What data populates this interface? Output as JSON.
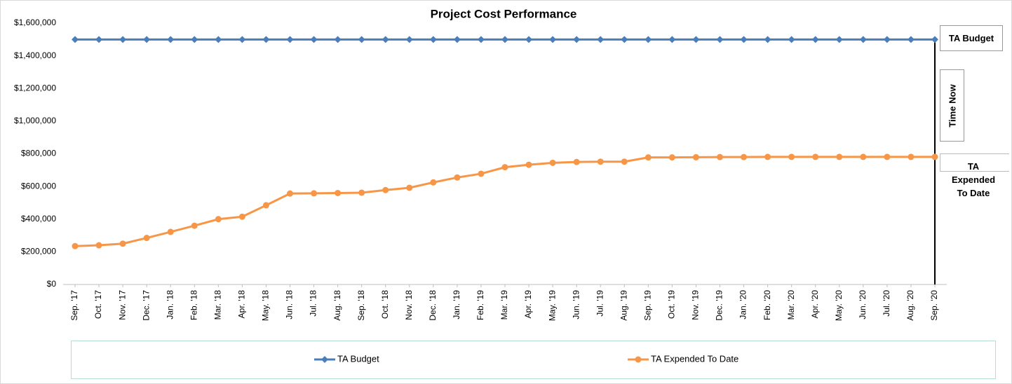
{
  "chart_data": {
    "type": "line",
    "title": "Project Cost Performance",
    "categories": [
      "Sep. '17",
      "Oct. '17",
      "Nov. '17",
      "Dec. '17",
      "Jan. '18",
      "Feb. '18",
      "Mar. '18",
      "Apr. '18",
      "May. '18",
      "Jun. '18",
      "Jul. '18",
      "Aug. '18",
      "Sep. '18",
      "Oct. '18",
      "Nov. '18",
      "Dec. '18",
      "Jan. '19",
      "Feb. '19",
      "Mar. '19",
      "Apr. '19",
      "May. '19",
      "Jun. '19",
      "Jul. '19",
      "Aug. '19",
      "Sep. '19",
      "Oct. '19",
      "Nov. '19",
      "Dec. '19",
      "Jan. '20",
      "Feb. '20",
      "Mar. '20",
      "Apr. '20",
      "May. '20",
      "Jun. '20",
      "Jul. '20",
      "Aug. '20",
      "Sep. '20"
    ],
    "series": [
      {
        "name": "TA Budget",
        "color": "#4a7ebb",
        "marker": "diamond",
        "values": [
          1500000,
          1500000,
          1500000,
          1500000,
          1500000,
          1500000,
          1500000,
          1500000,
          1500000,
          1500000,
          1500000,
          1500000,
          1500000,
          1500000,
          1500000,
          1500000,
          1500000,
          1500000,
          1500000,
          1500000,
          1500000,
          1500000,
          1500000,
          1500000,
          1500000,
          1500000,
          1500000,
          1500000,
          1500000,
          1500000,
          1500000,
          1500000,
          1500000,
          1500000,
          1500000,
          1500000,
          1500000
        ]
      },
      {
        "name": "TA Expended To Date",
        "color": "#f79646",
        "marker": "circle",
        "values": [
          235000,
          240000,
          250000,
          285000,
          322000,
          360000,
          400000,
          415000,
          485000,
          557000,
          558000,
          560000,
          562000,
          578000,
          592000,
          625000,
          655000,
          678000,
          718000,
          733000,
          745000,
          750000,
          752000,
          752000,
          778000,
          778000,
          779000,
          780000,
          780000,
          781000,
          781000,
          781000,
          781000,
          781000,
          781000,
          781000,
          781000
        ]
      }
    ],
    "ylim": [
      0,
      1600000
    ],
    "yticks": [
      {
        "value": 0,
        "label": "$0"
      },
      {
        "value": 200000,
        "label": "$200,000"
      },
      {
        "value": 400000,
        "label": "$400,000"
      },
      {
        "value": 600000,
        "label": "$600,000"
      },
      {
        "value": 800000,
        "label": "$800,000"
      },
      {
        "value": 1000000,
        "label": "$1,000,000"
      },
      {
        "value": 1200000,
        "label": "$1,200,000"
      },
      {
        "value": 1400000,
        "label": "$1,400,000"
      },
      {
        "value": 1600000,
        "label": "$1,600,000"
      }
    ],
    "grid": false,
    "legend": "bottom",
    "annotations": [
      "TA Budget",
      "Time Now",
      "TA Expended To Date"
    ]
  }
}
